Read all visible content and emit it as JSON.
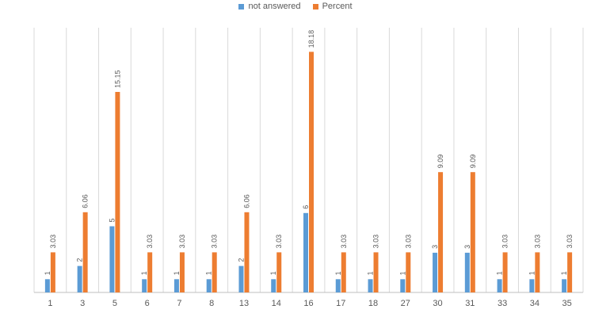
{
  "chart_data": {
    "type": "bar",
    "categories": [
      "1",
      "3",
      "5",
      "6",
      "7",
      "8",
      "13",
      "14",
      "16",
      "17",
      "18",
      "27",
      "30",
      "31",
      "33",
      "34",
      "35"
    ],
    "series": [
      {
        "name": "not answered",
        "color": "#5B9BD5",
        "values": [
          1,
          2,
          5,
          1,
          1,
          1,
          2,
          1,
          6,
          1,
          1,
          1,
          3,
          3,
          1,
          1,
          1
        ],
        "labels": [
          "1",
          "2",
          "5",
          "1",
          "1",
          "1",
          "2",
          "1",
          "6",
          "1",
          "1",
          "1",
          "3",
          "3",
          "1",
          "1",
          "1"
        ]
      },
      {
        "name": "Percent",
        "color": "#ED7D31",
        "values": [
          3.03,
          6.06,
          15.15,
          3.03,
          3.03,
          3.03,
          6.06,
          3.03,
          18.18,
          3.03,
          3.03,
          3.03,
          9.09,
          9.09,
          3.03,
          3.03,
          3.03
        ],
        "labels": [
          "3.03",
          "6.06",
          "15.15",
          "3.03",
          "3.03",
          "3.03",
          "6.06",
          "3.03",
          "18.18",
          "3.03",
          "3.03",
          "3.03",
          "9.09",
          "9.09",
          "3.03",
          "3.03",
          "3.03"
        ]
      }
    ],
    "ylim": [
      0,
      20
    ],
    "grid": "vertical",
    "legend": "top-center",
    "data_labels": "rotated"
  }
}
